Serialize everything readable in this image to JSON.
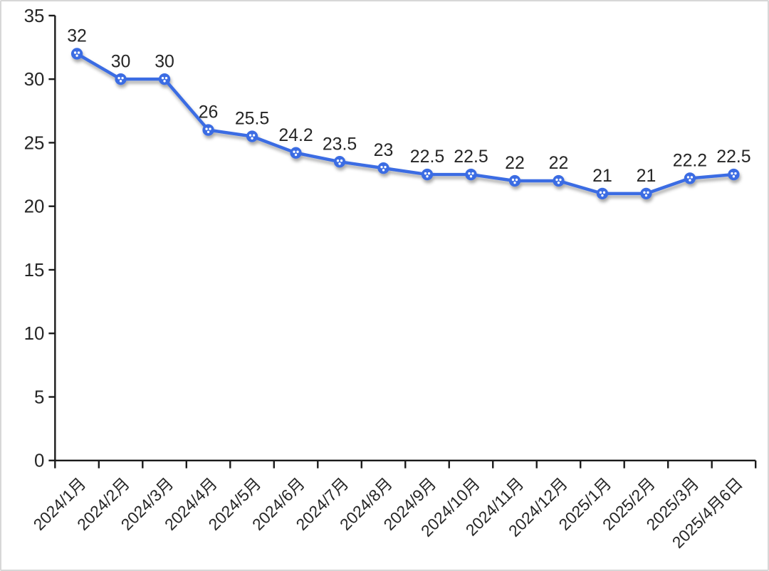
{
  "chart_data": {
    "type": "line",
    "title": "",
    "xlabel": "",
    "ylabel": "",
    "categories": [
      "2024/1月",
      "2024/2月",
      "2024/3月",
      "2024/4月",
      "2024/5月",
      "2024/6月",
      "2024/7月",
      "2024/8月",
      "2024/9月",
      "2024/10月",
      "2024/11月",
      "2024/12月",
      "2025/1月",
      "2025/2月",
      "2025/3月",
      "2025/4月6日"
    ],
    "values": [
      32,
      30,
      30,
      26,
      25.5,
      24.2,
      23.5,
      23,
      22.5,
      22.5,
      22,
      22,
      21,
      21,
      22.2,
      22.5
    ],
    "ylim": [
      0,
      35
    ],
    "yticks": [
      0,
      5,
      10,
      15,
      20,
      25,
      30,
      35
    ],
    "grid": false,
    "legend": "none",
    "data_labels_position": "above",
    "x_label_rotation_deg": -45,
    "series_color": "#3b6ce3",
    "marker_style": "circle-with-white-dots",
    "marker_inner_dot_color": "#ffffff",
    "axis_color": "#1a1a1a",
    "label_color": "#262626",
    "background_color": "#ffffff",
    "frame_border_color": "#d7d7d7"
  }
}
